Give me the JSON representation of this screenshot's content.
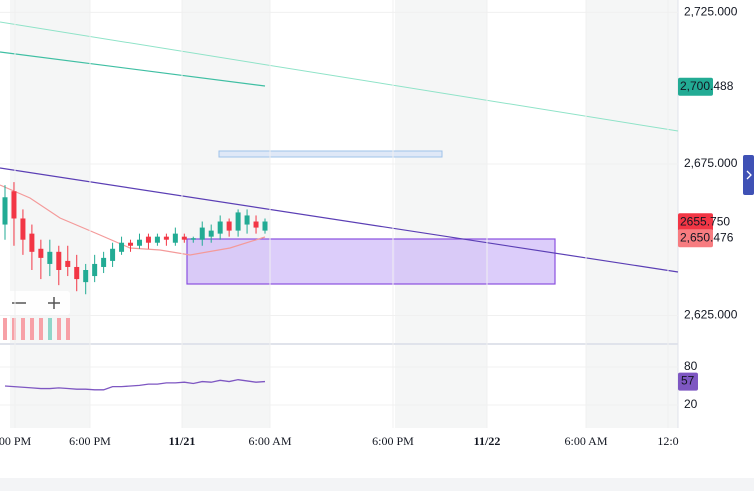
{
  "chart_data": {
    "type": "candlestick",
    "open": [
      2655,
      2666,
      2657,
      2652,
      2647,
      2642,
      2646,
      2643,
      2641,
      2636,
      2638,
      2641,
      2643,
      2646,
      2649,
      2648,
      2651,
      2649,
      2651,
      2649,
      2651,
      2650,
      2650,
      2651,
      2652,
      2656,
      2653,
      2655,
      2656,
      2653
    ],
    "high": [
      2668,
      2669,
      2660,
      2655,
      2650,
      2650,
      2648,
      2648,
      2645,
      2642,
      2645,
      2646,
      2649,
      2651,
      2650,
      2652,
      2652,
      2652,
      2652,
      2654,
      2652,
      2651,
      2656,
      2655,
      2658,
      2657,
      2660,
      2660,
      2658,
      2657
    ],
    "low": [
      2650,
      2648,
      2645,
      2640,
      2637,
      2638,
      2635,
      2638,
      2633,
      2632,
      2636,
      2639,
      2641,
      2645,
      2646,
      2647,
      2647,
      2648,
      2648,
      2648,
      2649,
      2649,
      2648,
      2649,
      2650,
      2651,
      2651,
      2652,
      2652,
      2652
    ],
    "close": [
      2664,
      2657,
      2650,
      2646,
      2644,
      2646,
      2640,
      2641,
      2637,
      2640,
      2642,
      2644,
      2647,
      2649,
      2648,
      2650,
      2649,
      2651,
      2650,
      2652,
      2650,
      2650.5,
      2654,
      2653,
      2656,
      2653,
      2659,
      2658,
      2654,
      2656
    ],
    "up_color": "#22ab94",
    "down_color": "#f23645",
    "ylim": [
      2616.9,
      2729.1
    ],
    "yticks": [
      {
        "value": 2625,
        "label": "2,625.000"
      },
      {
        "value": 2675,
        "label": "2,675.000"
      },
      {
        "value": 2725,
        "label": "2,725.000"
      }
    ],
    "price_labels": [
      {
        "value": 2700.488,
        "label": "2,700.488",
        "color": "#22ab94"
      },
      {
        "value": 2655.75,
        "label": "2655.750",
        "color": "#f23645"
      },
      {
        "value": 2650.476,
        "label": "2,650.476",
        "color": "#f77c80"
      }
    ],
    "xlabels": [
      "00 PM",
      "6:00 PM",
      "11/21",
      "6:00 AM",
      "6:00 PM",
      "11/22",
      "6:00 AM",
      "12:0"
    ],
    "rsi": {
      "values": [
        50,
        49,
        48,
        47,
        46,
        46,
        47,
        46,
        45,
        45,
        44,
        44,
        49,
        49,
        50,
        51,
        53,
        53,
        55,
        55,
        56,
        54,
        57,
        56,
        59,
        57,
        60,
        58,
        56,
        57
      ],
      "color": "#7e57c2",
      "ylim": [
        -16.3,
        110
      ],
      "yticks": [
        80,
        20
      ],
      "last_label": 57
    }
  }
}
